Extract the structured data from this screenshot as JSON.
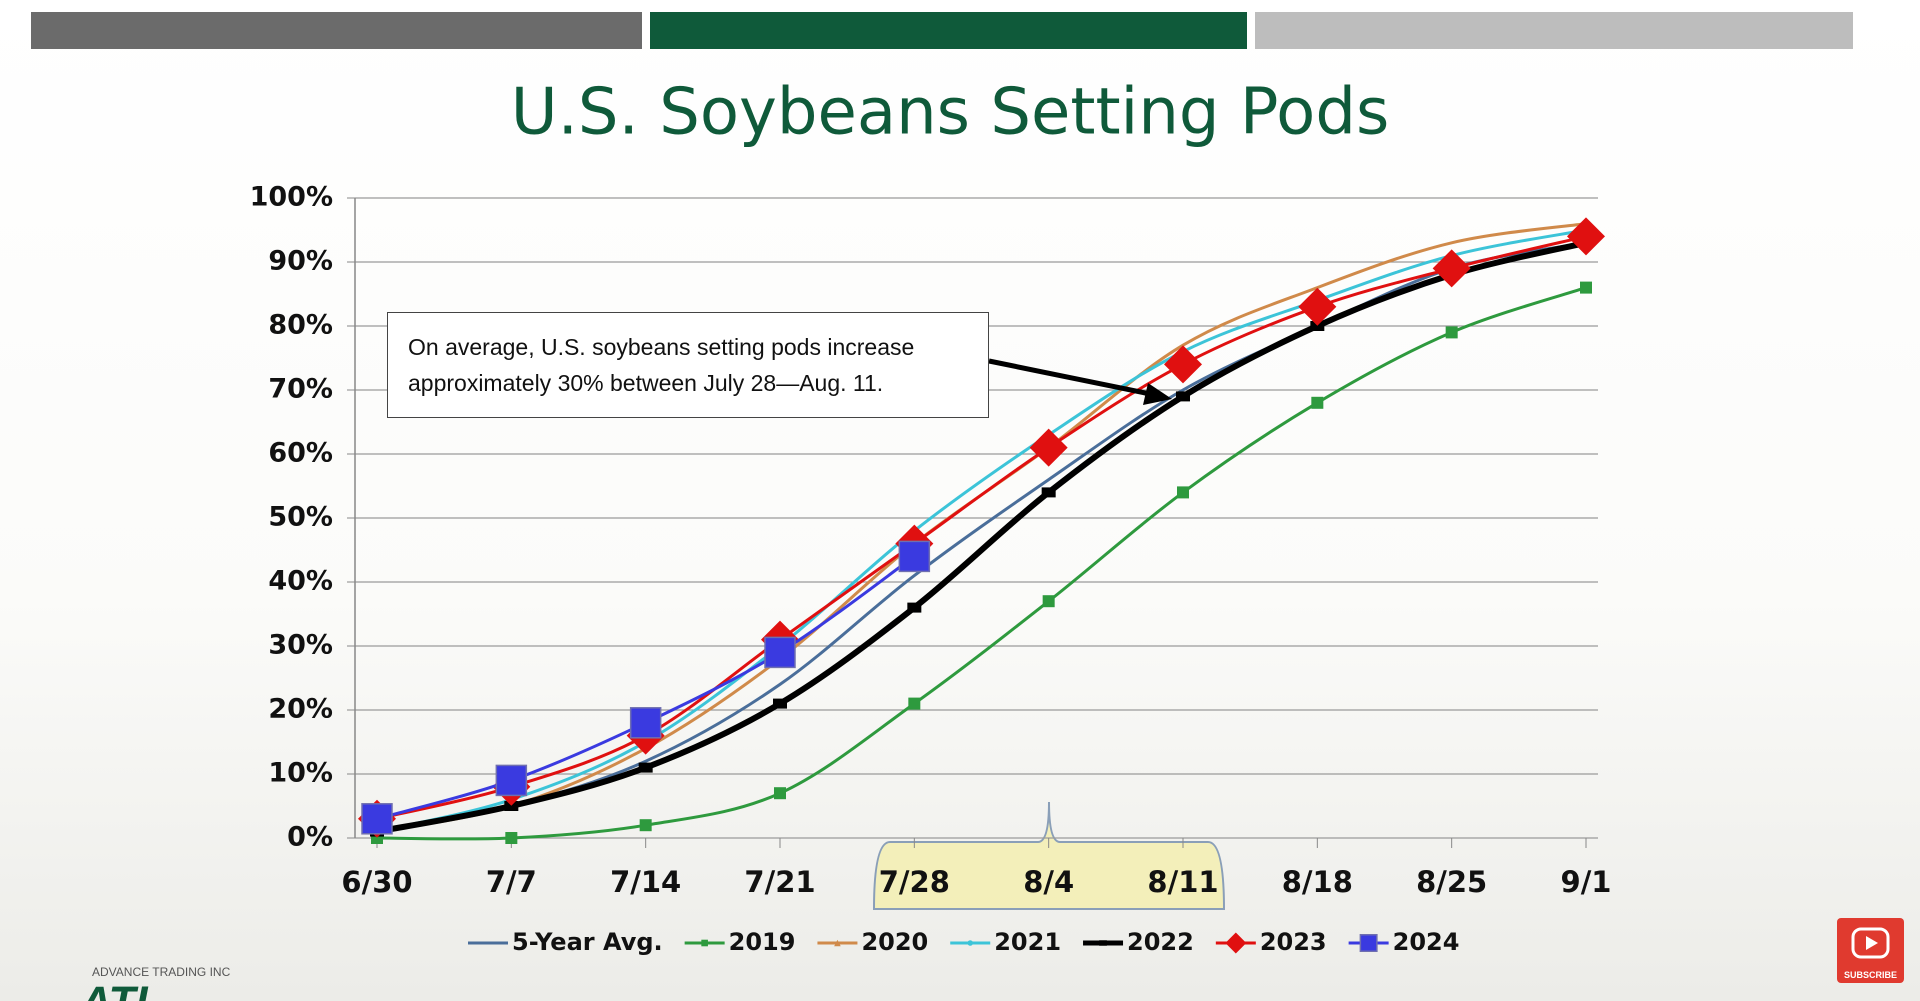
{
  "chart_data": {
    "type": "line",
    "title": "U.S. Soybeans Setting Pods",
    "categories": [
      "6/30",
      "7/7",
      "7/14",
      "7/21",
      "7/28",
      "8/4",
      "8/11",
      "8/18",
      "8/25",
      "9/1"
    ],
    "series": [
      {
        "name": "5-Year Avg.",
        "color": "#4a6e9a",
        "line_width": 3,
        "marker": "none",
        "values": [
          1,
          5,
          12,
          24,
          41,
          56,
          70,
          80,
          89,
          93
        ]
      },
      {
        "name": "2019",
        "color": "#2e9a3e",
        "line_width": 3,
        "marker": "square-small",
        "values": [
          0,
          0,
          2,
          7,
          21,
          37,
          54,
          68,
          79,
          86
        ]
      },
      {
        "name": "2020",
        "color": "#d08a4a",
        "line_width": 3,
        "marker": "triangle",
        "values": [
          1,
          5,
          14,
          28,
          46,
          61,
          77,
          86,
          93,
          96
        ]
      },
      {
        "name": "2021",
        "color": "#3cc4d8",
        "line_width": 3,
        "marker": "circle",
        "values": [
          1,
          6,
          15,
          30,
          48,
          63,
          76,
          84,
          91,
          95
        ]
      },
      {
        "name": "2022",
        "color": "#000000",
        "line_width": 6,
        "marker": "dash",
        "values": [
          1,
          5,
          11,
          21,
          36,
          54,
          69,
          80,
          88,
          93
        ]
      },
      {
        "name": "2023",
        "color": "#e01010",
        "line_width": 3,
        "marker": "diamond",
        "values": [
          3,
          8,
          16,
          31,
          46,
          61,
          74,
          83,
          89,
          94
        ]
      },
      {
        "name": "2024",
        "color": "#3a3ae0",
        "line_width": 3,
        "marker": "square",
        "values": [
          3,
          9,
          18,
          29,
          44,
          null,
          null,
          null,
          null,
          null
        ]
      }
    ],
    "ylim": [
      0,
      100
    ],
    "yticks": [
      {
        "value": 0,
        "label": "0%"
      },
      {
        "value": 10,
        "label": "10%"
      },
      {
        "value": 20,
        "label": "20%"
      },
      {
        "value": 30,
        "label": "30%"
      },
      {
        "value": 40,
        "label": "40%"
      },
      {
        "value": 50,
        "label": "50%"
      },
      {
        "value": 60,
        "label": "60%"
      },
      {
        "value": 70,
        "label": "70%"
      },
      {
        "value": 80,
        "label": "80%"
      },
      {
        "value": 90,
        "label": "90%"
      },
      {
        "value": 100,
        "label": "100%"
      }
    ],
    "grid": true,
    "legend": "bottom",
    "annotation": "On average, U.S. soybeans setting pods increase approximately 30% between July 28—Aug. 11."
  },
  "logo": {
    "company": "ADVANCE TRADING INC",
    "mark": "ATI"
  },
  "subscribe_label": "SUBSCRIBE"
}
